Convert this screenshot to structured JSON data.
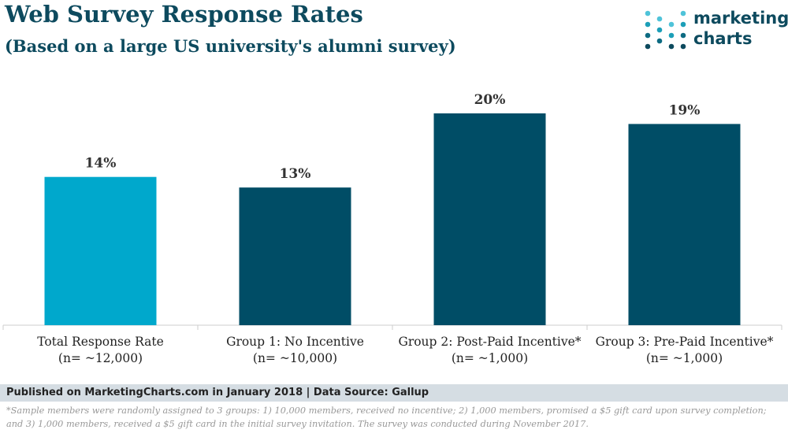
{
  "chart_data": {
    "type": "bar",
    "title": "Web Survey Response Rates",
    "subtitle": "(Based on a large US university's alumni survey)",
    "categories": [
      "Total Response Rate",
      "Group 1: No Incentive",
      "Group 2: Post-Paid Incentive*",
      "Group 3: Pre-Paid Incentive*"
    ],
    "sample_sizes": [
      "(n= ~12,000)",
      "(n= ~10,000)",
      "(n= ~1,000)",
      "(n= ~1,000)"
    ],
    "values": [
      14,
      13,
      20,
      19
    ],
    "value_labels": [
      "14%",
      "13%",
      "20%",
      "19%"
    ],
    "colors": [
      "#00a8cc",
      "#004d66",
      "#004d66",
      "#004d66"
    ]
  },
  "logo": [
    "marketing",
    "charts"
  ],
  "footer": {
    "source": "Published on MarketingCharts.com in January 2018 | Data Source: Gallup",
    "note": "*Sample members were randomly assigned to 3 groups: 1) 10,000 members, received no incentive; 2) 1,000 members, promised a $5 gift card upon survey completion; and 3) 1,000 members, received a $5 gift card in the initial survey invitation. The survey was conducted during November 2017."
  }
}
